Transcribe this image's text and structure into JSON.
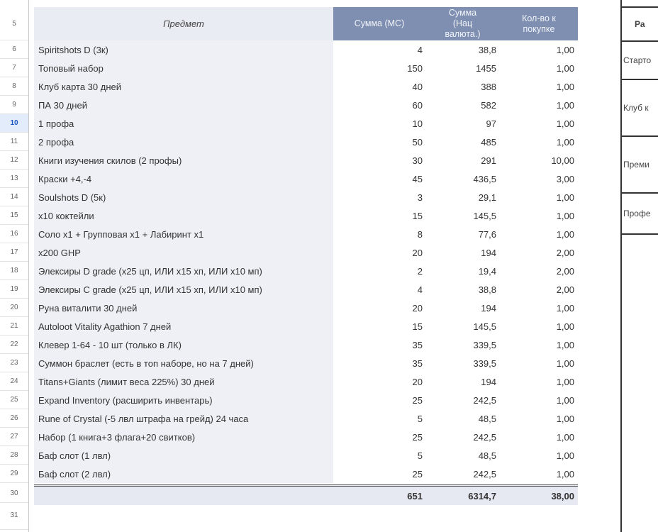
{
  "selected_row": 10,
  "row_numbers": [
    "5",
    "6",
    "7",
    "8",
    "9",
    "10",
    "11",
    "12",
    "13",
    "14",
    "15",
    "16",
    "17",
    "18",
    "19",
    "20",
    "21",
    "22",
    "23",
    "24",
    "25",
    "26",
    "27",
    "28",
    "29",
    "30",
    "31"
  ],
  "header": {
    "item": "Предмет",
    "sum_ms": "Сумма (МС)",
    "sum_nat": "Сумма (Нац валюта.)",
    "qty": "Кол-во к покупке"
  },
  "rows": [
    {
      "item": "Spiritshots D (3к)",
      "ms": "4",
      "nat": "38,8",
      "qty": "1,00"
    },
    {
      "item": "Топовый набор",
      "ms": "150",
      "nat": "1455",
      "qty": "1,00"
    },
    {
      "item": "Клуб карта 30 дней",
      "ms": "40",
      "nat": "388",
      "qty": "1,00"
    },
    {
      "item": "ПА 30 дней",
      "ms": "60",
      "nat": "582",
      "qty": "1,00"
    },
    {
      "item": "1 профа",
      "ms": "10",
      "nat": "97",
      "qty": "1,00"
    },
    {
      "item": "2 профа",
      "ms": "50",
      "nat": "485",
      "qty": "1,00"
    },
    {
      "item": "Книги изучения скилов (2 профы)",
      "ms": "30",
      "nat": "291",
      "qty": "10,00"
    },
    {
      "item": "Краски +4,-4",
      "ms": "45",
      "nat": "436,5",
      "qty": "3,00"
    },
    {
      "item": "Soulshots D (5к)",
      "ms": "3",
      "nat": "29,1",
      "qty": "1,00"
    },
    {
      "item": "x10 коктейли",
      "ms": "15",
      "nat": "145,5",
      "qty": "1,00"
    },
    {
      "item": "Соло x1 + Групповая x1 + Лабиринт x1",
      "ms": "8",
      "nat": "77,6",
      "qty": "1,00"
    },
    {
      "item": "x200 GHP",
      "ms": "20",
      "nat": "194",
      "qty": "2,00"
    },
    {
      "item": "Элексиры D grade (x25 цп, ИЛИ x15 хп, ИЛИ x10 мп)",
      "ms": "2",
      "nat": "19,4",
      "qty": "2,00"
    },
    {
      "item": "Элексиры C grade (x25 цп, ИЛИ x15 хп, ИЛИ x10 мп)",
      "ms": "4",
      "nat": "38,8",
      "qty": "2,00"
    },
    {
      "item": "Руна виталити 30 дней",
      "ms": "20",
      "nat": "194",
      "qty": "1,00"
    },
    {
      "item": "Autoloot Vitality Agathion 7 дней",
      "ms": "15",
      "nat": "145,5",
      "qty": "1,00"
    },
    {
      "item": "Клевер 1-64 - 10 шт (только в ЛК)",
      "ms": "35",
      "nat": "339,5",
      "qty": "1,00"
    },
    {
      "item": "Суммон браслет (есть в топ наборе, но на 7 дней)",
      "ms": "35",
      "nat": "339,5",
      "qty": "1,00"
    },
    {
      "item": "Titans+Giants (лимит веса 225%) 30 дней",
      "ms": "20",
      "nat": "194",
      "qty": "1,00"
    },
    {
      "item": "Expand Inventory (расширить инвентарь)",
      "ms": "25",
      "nat": "242,5",
      "qty": "1,00"
    },
    {
      "item": "Rune of Crystal (-5 лвл штрафа на грейд) 24 часа",
      "ms": "5",
      "nat": "48,5",
      "qty": "1,00"
    },
    {
      "item": "Набор (1 книга+3 флага+20 свитков)",
      "ms": "25",
      "nat": "242,5",
      "qty": "1,00"
    },
    {
      "item": "Баф слот (1 лвл)",
      "ms": "5",
      "nat": "48,5",
      "qty": "1,00"
    },
    {
      "item": "Баф слот (2 лвл)",
      "ms": "25",
      "nat": "242,5",
      "qty": "1,00"
    }
  ],
  "totals": {
    "ms": "651",
    "nat": "6314,7",
    "qty": "38,00"
  },
  "right_panel": {
    "header": "Ра",
    "items": [
      "Старто",
      "Клуб к",
      "Преми",
      "Профе"
    ]
  },
  "colors": {
    "header_bg": "#7e8fb2",
    "item_bg": "#eef0f5",
    "selected_row": "#1a56c4"
  }
}
